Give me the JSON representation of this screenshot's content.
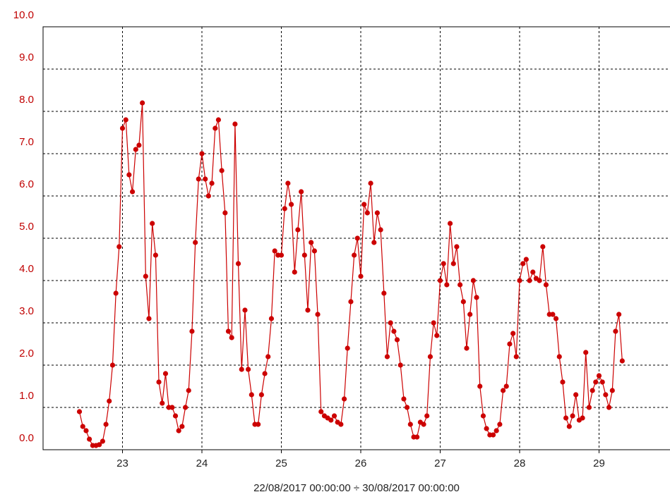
{
  "chart_data": {
    "type": "line",
    "xlabel": "22/08/2017 00:00:00 ÷ 30/08/2017 00:00:00",
    "x": [
      22.458,
      22.5,
      22.542,
      22.583,
      22.625,
      22.667,
      22.708,
      22.75,
      22.792,
      22.833,
      22.875,
      22.917,
      22.958,
      23,
      23.042,
      23.083,
      23.125,
      23.167,
      23.208,
      23.25,
      23.292,
      23.333,
      23.375,
      23.417,
      23.458,
      23.5,
      23.542,
      23.583,
      23.625,
      23.667,
      23.708,
      23.75,
      23.792,
      23.833,
      23.875,
      23.917,
      23.958,
      24,
      24.042,
      24.083,
      24.125,
      24.167,
      24.208,
      24.25,
      24.292,
      24.333,
      24.375,
      24.417,
      24.458,
      24.5,
      24.542,
      24.583,
      24.625,
      24.667,
      24.708,
      24.75,
      24.792,
      24.833,
      24.875,
      24.917,
      24.958,
      25,
      25.042,
      25.083,
      25.125,
      25.167,
      25.208,
      25.25,
      25.292,
      25.333,
      25.375,
      25.417,
      25.458,
      25.5,
      25.542,
      25.583,
      25.625,
      25.667,
      25.708,
      25.75,
      25.792,
      25.833,
      25.875,
      25.917,
      25.958,
      26,
      26.042,
      26.083,
      26.125,
      26.167,
      26.208,
      26.25,
      26.292,
      26.333,
      26.375,
      26.417,
      26.458,
      26.5,
      26.542,
      26.583,
      26.625,
      26.667,
      26.708,
      26.75,
      26.792,
      26.833,
      26.875,
      26.917,
      26.958,
      27,
      27.042,
      27.083,
      27.125,
      27.167,
      27.208,
      27.25,
      27.292,
      27.333,
      27.375,
      27.417,
      27.458,
      27.5,
      27.542,
      27.583,
      27.625,
      27.667,
      27.708,
      27.75,
      27.792,
      27.833,
      27.875,
      27.917,
      27.958,
      28,
      28.042,
      28.083,
      28.125,
      28.167,
      28.208,
      28.25,
      28.292,
      28.333,
      28.375,
      28.417,
      28.458,
      28.5,
      28.542,
      28.583,
      28.625,
      28.667,
      28.708,
      28.75,
      28.792,
      28.833,
      28.875,
      28.917,
      28.958,
      29,
      29.042,
      29.083,
      29.125,
      29.167,
      29.208,
      29.25,
      29.292
    ],
    "series": [
      {
        "color": "#cc0000",
        "values": [
          0.9,
          0.55,
          0.45,
          0.25,
          0.1,
          0.1,
          0.12,
          0.2,
          0.6,
          1.15,
          2.0,
          3.7,
          4.8,
          7.6,
          7.8,
          6.5,
          6.1,
          7.1,
          7.2,
          8.2,
          4.1,
          3.1,
          5.35,
          4.6,
          1.6,
          1.1,
          1.8,
          1.0,
          1.0,
          0.8,
          0.45,
          0.55,
          1.0,
          1.4,
          2.8,
          4.9,
          6.4,
          7.0,
          6.4,
          6.0,
          6.3,
          7.6,
          7.8,
          6.6,
          5.6,
          2.8,
          2.65,
          7.7,
          4.4,
          1.9,
          3.3,
          1.9,
          1.3,
          0.6,
          0.6,
          1.3,
          1.8,
          2.2,
          3.1,
          4.7,
          4.6,
          4.6,
          5.7,
          6.3,
          5.8,
          4.2,
          5.2,
          6.1,
          4.6,
          3.3,
          4.9,
          4.7,
          3.2,
          0.9,
          0.8,
          0.75,
          0.7,
          0.8,
          0.65,
          0.6,
          1.2,
          2.4,
          3.5,
          4.6,
          5.0,
          4.1,
          5.8,
          5.6,
          6.3,
          4.9,
          5.6,
          5.2,
          3.7,
          2.2,
          3.0,
          2.8,
          2.6,
          2.0,
          1.2,
          1.0,
          0.6,
          0.3,
          0.3,
          0.65,
          0.6,
          0.8,
          2.2,
          3.0,
          2.7,
          4.0,
          4.4,
          3.9,
          5.35,
          4.4,
          4.8,
          3.9,
          3.5,
          2.4,
          3.2,
          4.0,
          3.6,
          1.5,
          0.8,
          0.5,
          0.35,
          0.35,
          0.45,
          0.6,
          1.4,
          1.5,
          2.5,
          2.75,
          2.2,
          4.0,
          4.4,
          4.5,
          4.0,
          4.2,
          4.05,
          4.0,
          4.8,
          3.9,
          3.2,
          3.2,
          3.1,
          2.2,
          1.6,
          0.75,
          0.55,
          0.8,
          1.3,
          0.7,
          0.75,
          2.3,
          1.0,
          1.4,
          1.6,
          1.75,
          1.6,
          1.3,
          1.0,
          1.4,
          2.8,
          3.2,
          2.1
        ]
      }
    ],
    "xlim": [
      22,
      30
    ],
    "xticks": [
      23,
      24,
      25,
      26,
      27,
      28,
      29
    ],
    "ylim": [
      0,
      10
    ],
    "yticks": [
      {
        "value": 0,
        "label": "0.0"
      },
      {
        "value": 1,
        "label": "1.0"
      },
      {
        "value": 2,
        "label": "2.0"
      },
      {
        "value": 3,
        "label": "3.0"
      },
      {
        "value": 4,
        "label": "4.0"
      },
      {
        "value": 5,
        "label": "5.0"
      },
      {
        "value": 6,
        "label": "6.0"
      },
      {
        "value": 7,
        "label": "7.0"
      },
      {
        "value": 8,
        "label": "8.0"
      },
      {
        "value": 9,
        "label": "9.0"
      },
      {
        "value": 10,
        "label": "10.0"
      }
    ],
    "grid": true
  }
}
